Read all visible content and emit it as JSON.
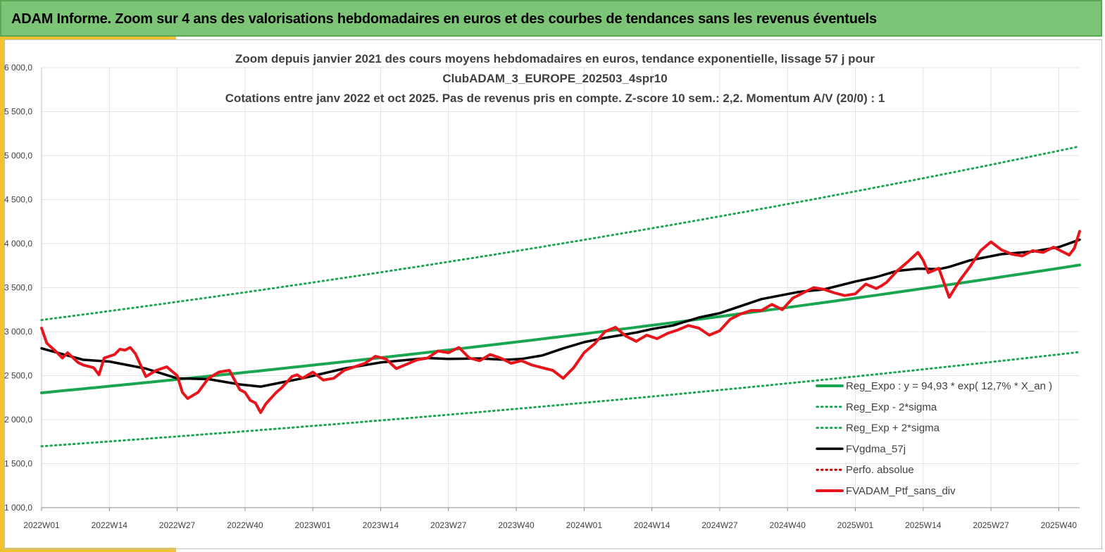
{
  "header": {
    "title": "ADAM Informe. Zoom sur 4 ans des valorisations hebdomadaires en euros et des courbes de tendances sans les revenus éventuels"
  },
  "colors": {
    "banner": "#7cc576",
    "accent": "#f2c230",
    "trend": "#1aa650",
    "band": "#1aa650",
    "smooth": "#000000",
    "price": "#e8141b",
    "perf": "#c00000",
    "grid": "#e3e3e3"
  },
  "chart_data": {
    "type": "line",
    "title_lines": [
      "Zoom depuis janvier 2021 des cours moyens hebdomadaires  en euros, tendance exponentielle, lissage 57 j pour",
      "ClubADAM_3_EUROPE_202503_4spr10",
      "Cotations  entre janv 2022 et oct 2025. Pas de revenus pris en compte. Z-score 10 sem.: 2,2. Momentum A/V (20/0) : 1"
    ],
    "ylim": [
      1000,
      6000
    ],
    "y_ticks": [
      1000,
      1500,
      2000,
      2500,
      3000,
      3500,
      4000,
      4500,
      5000,
      5500,
      6000
    ],
    "y_tick_labels": [
      "1 000,0",
      "1 500,0",
      "2 000,0",
      "2 500,0",
      "3 000,0",
      "3 500,0",
      "4 000,0",
      "4 500,0",
      "5 000,0",
      "5 500,0",
      "6 000,0"
    ],
    "x_week_range": [
      0,
      199
    ],
    "x_ticks": [
      0,
      13,
      26,
      39,
      52,
      65,
      78,
      91,
      104,
      117,
      130,
      143,
      156,
      169,
      182,
      195
    ],
    "x_tick_labels": [
      "2022W01",
      "2022W14",
      "2022W27",
      "2022W40",
      "2023W01",
      "2023W14",
      "2023W27",
      "2023W40",
      "2024W01",
      "2024W14",
      "2024W27",
      "2024W40",
      "2025W01",
      "2025W14",
      "2025W27",
      "2025W40"
    ],
    "legend_position": "lower-right",
    "series": [
      {
        "name": "Reg_Expo : y = 94,93 * exp( 12,7% *  X_an )",
        "style": "solid-thick",
        "color": "#1aa650",
        "x": [
          0,
          199
        ],
        "values": [
          2305,
          3757
        ],
        "curve": "exponential"
      },
      {
        "name": "Reg_Exp - 2*sigma",
        "style": "dotted",
        "color": "#1aa650",
        "x": [
          0,
          199
        ],
        "values": [
          1697,
          2768
        ],
        "curve": "exponential"
      },
      {
        "name": "Reg_Exp + 2*sigma",
        "style": "dotted",
        "color": "#1aa650",
        "x": [
          0,
          199
        ],
        "values": [
          3132,
          5105
        ],
        "curve": "exponential"
      },
      {
        "name": "FVgdma_57j",
        "style": "solid",
        "color": "#000000",
        "x": [
          0,
          8,
          13,
          20,
          26,
          32,
          38,
          42,
          50,
          58,
          65,
          74,
          78,
          84,
          89,
          92,
          96,
          100,
          104,
          108,
          114,
          117,
          121,
          126,
          130,
          138,
          145,
          150,
          156,
          160,
          164,
          168,
          172,
          174,
          178,
          184,
          190,
          195,
          199
        ],
        "values": [
          2810,
          2680,
          2660,
          2580,
          2470,
          2460,
          2400,
          2375,
          2470,
          2580,
          2650,
          2700,
          2690,
          2695,
          2680,
          2690,
          2730,
          2810,
          2880,
          2930,
          2990,
          3030,
          3070,
          3160,
          3210,
          3370,
          3450,
          3480,
          3570,
          3620,
          3690,
          3715,
          3710,
          3735,
          3810,
          3880,
          3910,
          3960,
          4045
        ]
      },
      {
        "name": "Perfo. absolue",
        "style": "dotted",
        "color": "#c00000",
        "x": [],
        "values": []
      },
      {
        "name": "FVADAM_Ptf_sans_div",
        "style": "solid-thick",
        "color": "#e8141b",
        "x": [
          0,
          1,
          3,
          4,
          5,
          7,
          8,
          10,
          11,
          12,
          14,
          15,
          16,
          17,
          18,
          20,
          22,
          23,
          24,
          26,
          27,
          28,
          30,
          32,
          34,
          36,
          38,
          39,
          40,
          41,
          42,
          43,
          45,
          46,
          48,
          49,
          50,
          52,
          54,
          56,
          58,
          60,
          62,
          64,
          66,
          68,
          70,
          72,
          74,
          76,
          78,
          80,
          82,
          84,
          86,
          88,
          90,
          92,
          94,
          96,
          98,
          100,
          102,
          104,
          106,
          108,
          110,
          112,
          114,
          116,
          118,
          120,
          122,
          124,
          126,
          128,
          130,
          132,
          134,
          136,
          138,
          140,
          142,
          144,
          146,
          148,
          150,
          152,
          154,
          156,
          158,
          160,
          161,
          162,
          164,
          166,
          168,
          169,
          170,
          172,
          174,
          176,
          178,
          180,
          182,
          184,
          186,
          188,
          190,
          192,
          194,
          196,
          197,
          198,
          199
        ],
        "values": [
          3040,
          2870,
          2760,
          2700,
          2760,
          2650,
          2620,
          2590,
          2510,
          2700,
          2740,
          2800,
          2790,
          2820,
          2750,
          2490,
          2560,
          2580,
          2600,
          2500,
          2310,
          2240,
          2310,
          2470,
          2540,
          2560,
          2340,
          2310,
          2220,
          2190,
          2080,
          2180,
          2310,
          2360,
          2490,
          2510,
          2470,
          2540,
          2450,
          2470,
          2560,
          2600,
          2640,
          2720,
          2690,
          2580,
          2630,
          2680,
          2700,
          2780,
          2760,
          2820,
          2700,
          2670,
          2740,
          2700,
          2640,
          2670,
          2620,
          2590,
          2560,
          2470,
          2590,
          2760,
          2860,
          3000,
          3050,
          2950,
          2890,
          2960,
          2920,
          2980,
          3020,
          3070,
          3040,
          2960,
          3010,
          3140,
          3200,
          3240,
          3240,
          3310,
          3250,
          3380,
          3440,
          3500,
          3480,
          3440,
          3410,
          3430,
          3540,
          3490,
          3520,
          3560,
          3690,
          3790,
          3900,
          3810,
          3670,
          3720,
          3390,
          3580,
          3740,
          3920,
          4020,
          3930,
          3880,
          3860,
          3920,
          3900,
          3960,
          3900,
          3870,
          3950,
          4140
        ]
      }
    ]
  }
}
